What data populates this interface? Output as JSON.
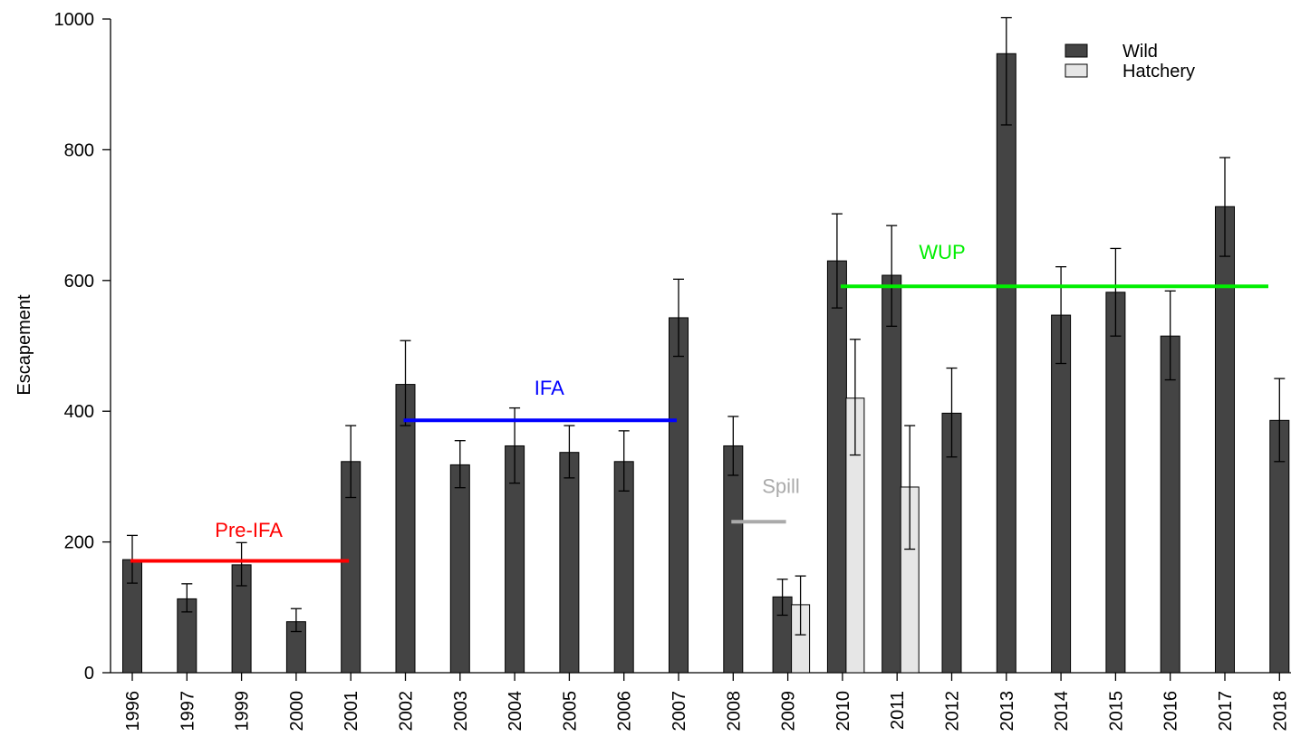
{
  "chart_data": {
    "type": "bar",
    "title": "",
    "xlabel": "",
    "ylabel": "Escapement",
    "ylim": [
      0,
      1000
    ],
    "yticks": [
      0,
      200,
      400,
      600,
      800,
      1000
    ],
    "grid": false,
    "legend_position": "top-right",
    "categories": [
      "1996",
      "1997",
      "1999",
      "2000",
      "2001",
      "2002",
      "2003",
      "2004",
      "2005",
      "2006",
      "2007",
      "2008",
      "2009",
      "2010",
      "2011",
      "2012",
      "2013",
      "2014",
      "2015",
      "2016",
      "2017",
      "2018"
    ],
    "series": [
      {
        "name": "Wild",
        "color": "#444444",
        "values": [
          173,
          113,
          165,
          78,
          323,
          441,
          318,
          347,
          337,
          323,
          543,
          347,
          116,
          630,
          608,
          397,
          947,
          547,
          582,
          515,
          713,
          386
        ],
        "err_low": [
          137,
          93,
          133,
          63,
          268,
          378,
          283,
          290,
          298,
          278,
          484,
          302,
          88,
          558,
          530,
          330,
          838,
          473,
          515,
          448,
          637,
          323
        ],
        "err_high": [
          210,
          136,
          199,
          98,
          378,
          508,
          355,
          405,
          378,
          370,
          602,
          392,
          143,
          702,
          684,
          466,
          1020,
          621,
          649,
          584,
          788,
          450
        ]
      },
      {
        "name": "Hatchery",
        "color": "#e6e6e6",
        "values": [
          null,
          null,
          null,
          null,
          null,
          null,
          null,
          null,
          null,
          null,
          null,
          null,
          104,
          420,
          284,
          null,
          null,
          null,
          null,
          null,
          null,
          null
        ],
        "err_low": [
          null,
          null,
          null,
          null,
          null,
          null,
          null,
          null,
          null,
          null,
          null,
          null,
          58,
          333,
          189,
          null,
          null,
          null,
          null,
          null,
          null,
          null
        ],
        "err_high": [
          null,
          null,
          null,
          null,
          null,
          null,
          null,
          null,
          null,
          null,
          null,
          null,
          148,
          510,
          378,
          null,
          null,
          null,
          null,
          null,
          null,
          null
        ]
      }
    ],
    "annotations": [
      {
        "label": "Pre-IFA",
        "color": "#ff0000",
        "y": 171,
        "from_index": 0,
        "to_index": 4,
        "label_y": 208
      },
      {
        "label": "IFA",
        "color": "#0000ff",
        "y": 386,
        "from_index": 5,
        "to_index": 10,
        "label_y": 425
      },
      {
        "label": "Spill",
        "color": "#aaaaaa",
        "y": 231,
        "from_index": 11,
        "to_index": 12,
        "label_y": 275
      },
      {
        "label": "WUP",
        "color": "#00ee00",
        "y": 591,
        "from_index": 13,
        "to_index": 21,
        "label_y": 633
      }
    ]
  }
}
